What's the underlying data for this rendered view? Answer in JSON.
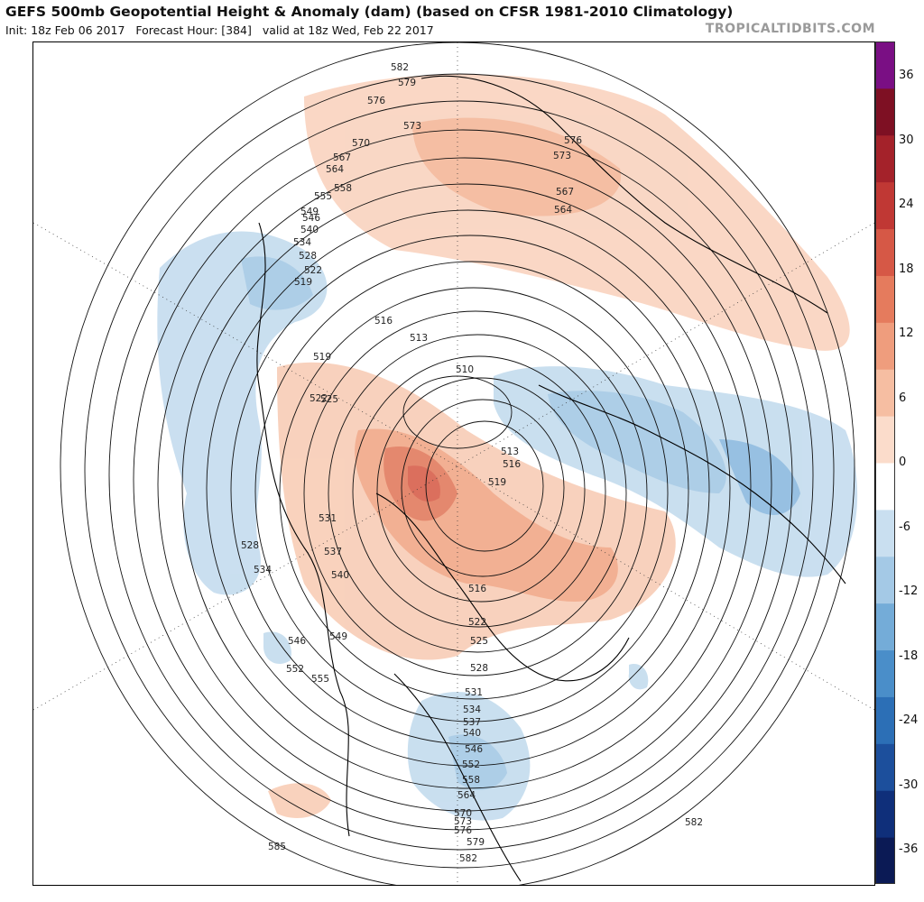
{
  "header": {
    "title": "GEFS 500mb Geopotential Height & Anomaly (dam) (based on CFSR 1981-2010 Climatology)",
    "init": "Init: 18z Feb 06 2017",
    "forecast_hour": "Forecast Hour: [384]",
    "valid": "valid at 18z Wed, Feb 22 2017",
    "brand": "TROPICALTIDBITS.COM"
  },
  "colorbar": {
    "ticks": [
      "36",
      "30",
      "24",
      "18",
      "12",
      "6",
      "0",
      "-6",
      "-12",
      "-18",
      "-24",
      "-30",
      "-36"
    ],
    "colors": [
      "#0b1a55",
      "#0f2f7a",
      "#1c4f9c",
      "#2c6fb6",
      "#4a8ec9",
      "#74acd8",
      "#a4c9e6",
      "#c9dff0",
      "#ffffff",
      "#fbdccb",
      "#f6bea2",
      "#ef9d7d",
      "#e57b5d",
      "#d65846",
      "#c03834",
      "#a4222a",
      "#7e1023",
      "#7a0f84"
    ],
    "levels_note": ""
  },
  "contour_labels": [
    "582",
    "579",
    "576",
    "573",
    "570",
    "567",
    "564",
    "558",
    "555",
    "549",
    "546",
    "540",
    "534",
    "528",
    "522",
    "519",
    "516",
    "513",
    "510",
    "513",
    "516",
    "519",
    "522",
    "525",
    "531",
    "537",
    "540",
    "549",
    "546",
    "552",
    "555",
    "528",
    "534",
    "531",
    "534",
    "537",
    "540",
    "546",
    "552",
    "558",
    "564",
    "570",
    "573",
    "576",
    "579",
    "582",
    "585",
    "582",
    "576",
    "573",
    "567",
    "564",
    "516",
    "522",
    "525",
    "528",
    "519"
  ]
}
